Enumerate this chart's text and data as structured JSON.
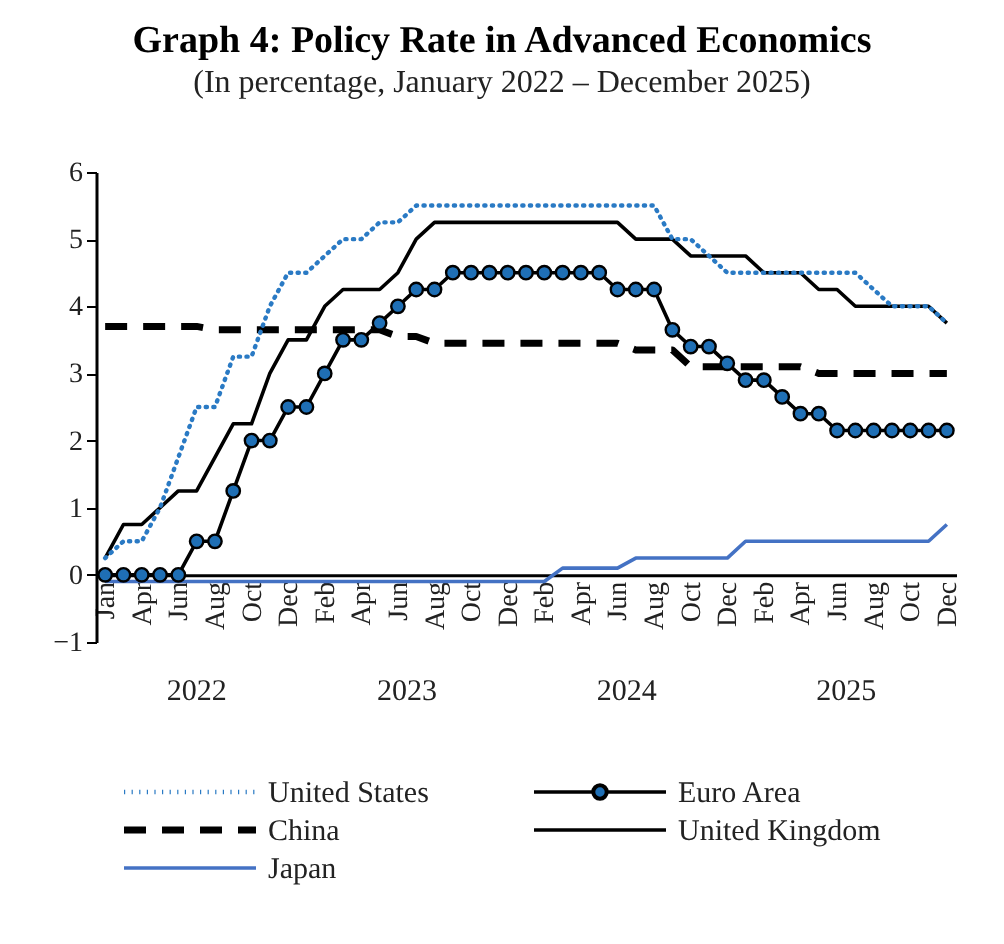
{
  "chart_data": {
    "type": "line",
    "title": "Graph 4: Policy Rate in Advanced Economics",
    "subtitle": "(In percentage, January 2022 – December 2025)",
    "categories": [
      "Jan",
      null,
      "Apr",
      null,
      "Jun",
      null,
      "Aug",
      null,
      "Oct",
      null,
      "Dec",
      null,
      "Feb",
      null,
      "Apr",
      null,
      "Jun",
      null,
      "Aug",
      null,
      "Oct",
      null,
      "Dec",
      null,
      "Feb",
      null,
      "Apr",
      null,
      "Jun",
      null,
      "Aug",
      null,
      "Oct",
      null,
      "Dec",
      null,
      "Feb",
      null,
      "Apr",
      null,
      "Jun",
      null,
      "Aug",
      null,
      "Oct",
      null,
      "Dec"
    ],
    "series": [
      {
        "name": "United States",
        "color": "#2a7ac4",
        "line_style": "dotted",
        "values": [
          0.25,
          0.5,
          0.5,
          1.0,
          1.75,
          2.5,
          2.5,
          3.25,
          3.25,
          4.0,
          4.5,
          4.5,
          4.75,
          5.0,
          5.0,
          5.25,
          5.25,
          5.5,
          5.5,
          5.5,
          5.5,
          5.5,
          5.5,
          5.5,
          5.5,
          5.5,
          5.5,
          5.5,
          5.5,
          5.5,
          5.5,
          5.0,
          5.0,
          4.75,
          4.5,
          4.5,
          4.5,
          4.5,
          4.5,
          4.5,
          4.5,
          4.5,
          4.25,
          4.0,
          4.0,
          4.0,
          3.75
        ]
      },
      {
        "name": "Euro Area",
        "color": "#000000",
        "line_style": "solid",
        "marker": "circle",
        "values": [
          0,
          0,
          0,
          0,
          0,
          0.5,
          0.5,
          1.25,
          2.0,
          2.0,
          2.5,
          2.5,
          3.0,
          3.5,
          3.5,
          3.75,
          4.0,
          4.25,
          4.25,
          4.5,
          4.5,
          4.5,
          4.5,
          4.5,
          4.5,
          4.5,
          4.5,
          4.5,
          4.25,
          4.25,
          4.25,
          3.65,
          3.4,
          3.4,
          3.15,
          2.9,
          2.9,
          2.65,
          2.4,
          2.4,
          2.15,
          2.15,
          2.15,
          2.15,
          2.15,
          2.15,
          2.15
        ]
      },
      {
        "name": "China",
        "color": "#000000",
        "line_style": "dashed",
        "values": [
          3.7,
          3.7,
          3.7,
          3.7,
          3.7,
          3.7,
          3.65,
          3.65,
          3.65,
          3.65,
          3.65,
          3.65,
          3.65,
          3.65,
          3.65,
          3.65,
          3.55,
          3.55,
          3.45,
          3.45,
          3.45,
          3.45,
          3.45,
          3.45,
          3.45,
          3.45,
          3.45,
          3.45,
          3.45,
          3.35,
          3.35,
          3.35,
          3.1,
          3.1,
          3.1,
          3.1,
          3.1,
          3.1,
          3.1,
          3.0,
          3.0,
          3.0,
          3.0,
          3.0,
          3.0,
          3.0,
          3.0
        ]
      },
      {
        "name": "United Kingdom",
        "color": "#000000",
        "line_style": "solid",
        "values": [
          0.25,
          0.75,
          0.75,
          1.0,
          1.25,
          1.25,
          1.75,
          2.25,
          2.25,
          3.0,
          3.5,
          3.5,
          4.0,
          4.25,
          4.25,
          4.25,
          4.5,
          5.0,
          5.25,
          5.25,
          5.25,
          5.25,
          5.25,
          5.25,
          5.25,
          5.25,
          5.25,
          5.25,
          5.25,
          5.0,
          5.0,
          5.0,
          4.75,
          4.75,
          4.75,
          4.75,
          4.5,
          4.5,
          4.5,
          4.25,
          4.25,
          4.0,
          4.0,
          4.0,
          4.0,
          4.0,
          3.75
        ]
      },
      {
        "name": "Japan",
        "color": "#4472c4",
        "line_style": "solid",
        "values": [
          -0.1,
          -0.1,
          -0.1,
          -0.1,
          -0.1,
          -0.1,
          -0.1,
          -0.1,
          -0.1,
          -0.1,
          -0.1,
          -0.1,
          -0.1,
          -0.1,
          -0.1,
          -0.1,
          -0.1,
          -0.1,
          -0.1,
          -0.1,
          -0.1,
          -0.1,
          -0.1,
          -0.1,
          -0.1,
          0.1,
          0.1,
          0.1,
          0.1,
          0.25,
          0.25,
          0.25,
          0.25,
          0.25,
          0.25,
          0.5,
          0.5,
          0.5,
          0.5,
          0.5,
          0.5,
          0.5,
          0.5,
          0.5,
          0.5,
          0.5,
          0.75
        ]
      }
    ],
    "annotations": [
      "2022",
      "2023",
      "2024",
      "2025"
    ],
    "ylim": [
      -1,
      6
    ],
    "yticks": [
      -1,
      0,
      1,
      2,
      3,
      4,
      5,
      6
    ],
    "grid": false,
    "legend": "bottom"
  }
}
